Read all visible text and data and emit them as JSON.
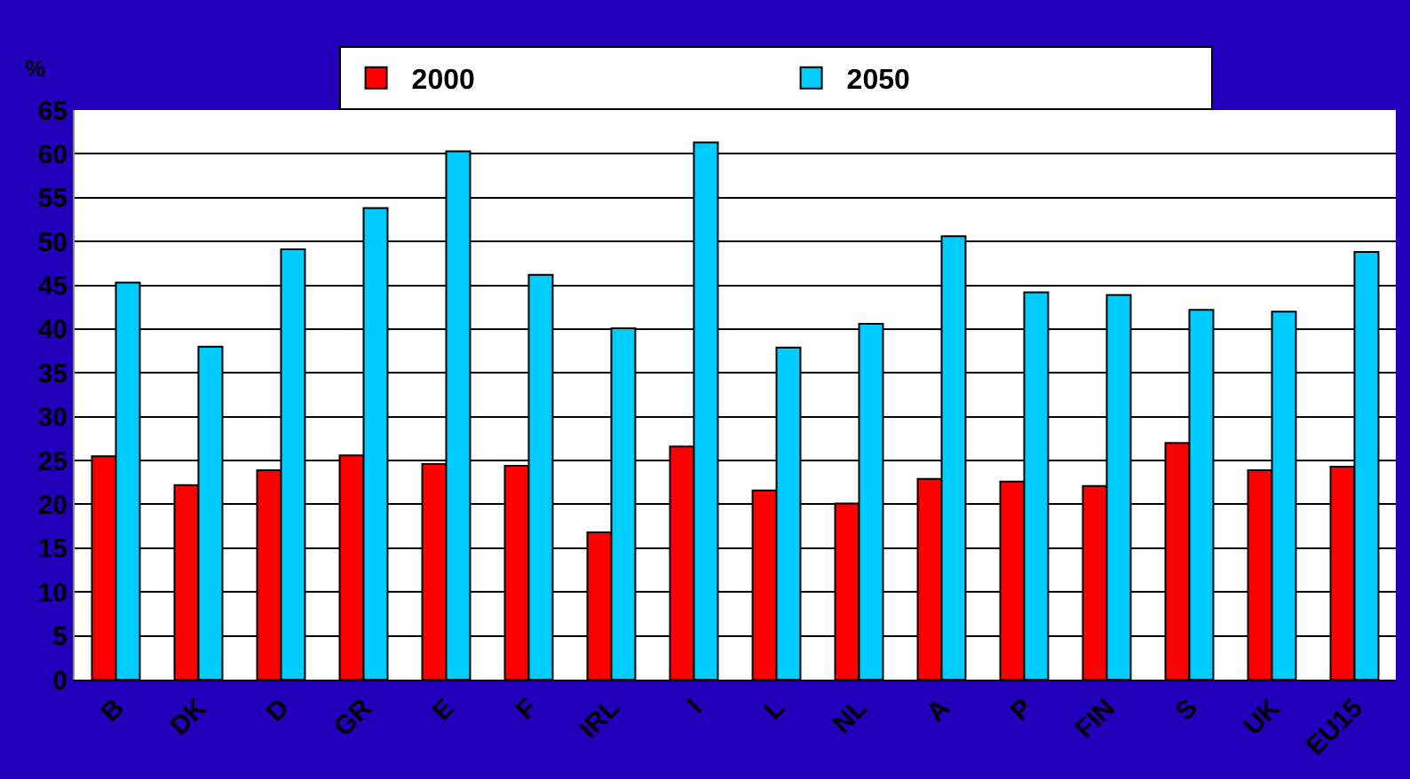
{
  "chart_data": {
    "type": "bar",
    "ylabel": "%",
    "categories": [
      "B",
      "DK",
      "D",
      "GR",
      "E",
      "F",
      "IRL",
      "I",
      "L",
      "NL",
      "A",
      "P",
      "FIN",
      "S",
      "UK",
      "EU15"
    ],
    "series": [
      {
        "name": "2000",
        "color": "#ff0000",
        "values": [
          25.5,
          22.2,
          23.9,
          25.6,
          24.6,
          24.4,
          16.8,
          26.6,
          21.6,
          20.1,
          22.9,
          22.6,
          22.1,
          27.0,
          23.9,
          24.3
        ]
      },
      {
        "name": "2050",
        "color": "#00ccff",
        "values": [
          45.3,
          38.0,
          49.1,
          53.8,
          60.3,
          46.2,
          40.1,
          61.3,
          37.9,
          40.6,
          50.6,
          44.2,
          43.9,
          42.2,
          42.0,
          48.8
        ]
      }
    ],
    "ylim": [
      0,
      65
    ],
    "yticks": [
      0,
      5,
      10,
      15,
      20,
      25,
      30,
      35,
      40,
      45,
      50,
      55,
      60,
      65
    ],
    "grid": "y",
    "legend": "top"
  }
}
